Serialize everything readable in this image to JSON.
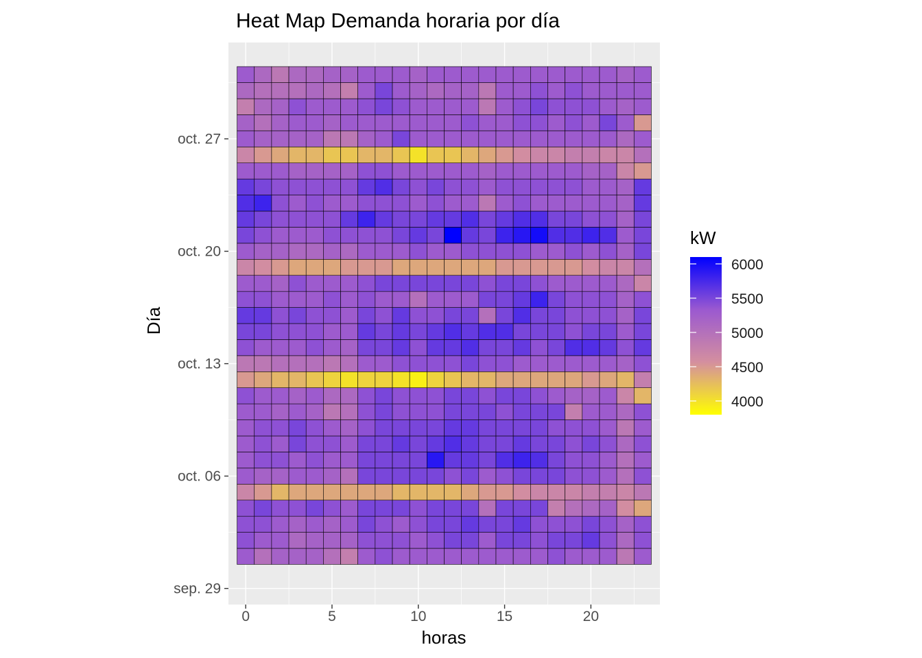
{
  "chart_data": {
    "type": "heatmap",
    "title": "Heat Map Demanda horaria por día",
    "xlabel": "horas",
    "ylabel": "Día",
    "xlim": [
      -1,
      24
    ],
    "x_ticks": [
      0,
      5,
      10,
      15,
      20
    ],
    "y_ticks": [
      {
        "label": "sep. 29",
        "date": "2019-09-29"
      },
      {
        "label": "oct. 06",
        "date": "2019-10-06"
      },
      {
        "label": "oct. 13",
        "date": "2019-10-13"
      },
      {
        "label": "oct. 20",
        "date": "2019-10-20"
      },
      {
        "label": "oct. 27",
        "date": "2019-10-27"
      }
    ],
    "ylim": [
      "2019-09-28",
      "2019-11-02"
    ],
    "hours": [
      0,
      1,
      2,
      3,
      4,
      5,
      6,
      7,
      8,
      9,
      10,
      11,
      12,
      13,
      14,
      15,
      16,
      17,
      18,
      19,
      20,
      21,
      22,
      23
    ],
    "legend": {
      "title": "kW",
      "position": "right",
      "breaks": [
        4000,
        4500,
        5000,
        5500,
        6000
      ],
      "range": [
        3800,
        6100
      ],
      "colors": [
        "#ffff00",
        "#d48f9f",
        "#9b59d0",
        "#0000ff"
      ]
    },
    "grid": true,
    "rows": [
      {
        "date": "2019-10-01",
        "values": [
          5300,
          5000,
          5200,
          5200,
          5200,
          5000,
          4800,
          5300,
          5400,
          5300,
          5300,
          5300,
          5300,
          5300,
          5300,
          5300,
          5300,
          5300,
          5400,
          5300,
          5300,
          5300,
          4900,
          5300
        ]
      },
      {
        "date": "2019-10-02",
        "values": [
          5400,
          5300,
          5300,
          5100,
          5200,
          5200,
          5200,
          5400,
          5400,
          5400,
          5300,
          5400,
          5500,
          5500,
          5300,
          5500,
          5500,
          5400,
          5500,
          5500,
          5600,
          5400,
          5100,
          5400
        ]
      },
      {
        "date": "2019-10-03",
        "values": [
          5400,
          5400,
          5300,
          5200,
          5300,
          5200,
          5300,
          5500,
          5400,
          5300,
          5400,
          5500,
          5500,
          5600,
          5500,
          5500,
          5600,
          5400,
          5400,
          5400,
          5500,
          5400,
          5200,
          5400
        ]
      },
      {
        "date": "2019-10-04",
        "values": [
          5400,
          5500,
          5400,
          5400,
          5500,
          5400,
          5300,
          5500,
          5500,
          5500,
          5400,
          5500,
          5500,
          5500,
          5000,
          5500,
          5500,
          5500,
          4800,
          5000,
          5100,
          5200,
          4600,
          4400
        ]
      },
      {
        "date": "2019-10-05",
        "values": [
          4700,
          4500,
          4300,
          4400,
          4400,
          4400,
          4400,
          4400,
          4400,
          4300,
          4300,
          4300,
          4300,
          4400,
          4500,
          4500,
          4600,
          4700,
          4700,
          4700,
          4800,
          4800,
          4700,
          4900
        ]
      },
      {
        "date": "2019-10-06",
        "values": [
          5300,
          5200,
          5200,
          5300,
          5300,
          5200,
          5000,
          5500,
          5500,
          5500,
          5500,
          5500,
          5400,
          5500,
          5300,
          5400,
          5500,
          5500,
          5500,
          5400,
          5400,
          5300,
          5000,
          5400
        ]
      },
      {
        "date": "2019-10-07",
        "values": [
          5300,
          5400,
          5400,
          5300,
          5400,
          5300,
          5300,
          5500,
          5500,
          5500,
          5500,
          5900,
          5600,
          5600,
          5500,
          5700,
          5800,
          5700,
          5500,
          5400,
          5400,
          5300,
          5000,
          5300
        ]
      },
      {
        "date": "2019-10-08",
        "values": [
          5300,
          5400,
          5300,
          5500,
          5400,
          5400,
          5300,
          5500,
          5500,
          5600,
          5500,
          5600,
          5700,
          5600,
          5500,
          5500,
          5600,
          5500,
          5500,
          5400,
          5500,
          5400,
          5100,
          5400
        ]
      },
      {
        "date": "2019-10-09",
        "values": [
          5300,
          5400,
          5400,
          5500,
          5400,
          5300,
          5200,
          5400,
          5500,
          5500,
          5500,
          5500,
          5600,
          5600,
          5500,
          5500,
          5500,
          5500,
          5400,
          5400,
          5400,
          5300,
          4900,
          5300
        ]
      },
      {
        "date": "2019-10-10",
        "values": [
          5300,
          5300,
          5200,
          5300,
          5200,
          4900,
          5000,
          5400,
          5500,
          5400,
          5400,
          5400,
          5500,
          5500,
          5500,
          5400,
          5500,
          5500,
          5500,
          4800,
          5300,
          5300,
          5100,
          5400
        ]
      },
      {
        "date": "2019-10-11",
        "values": [
          5400,
          5300,
          5300,
          5200,
          5300,
          5100,
          5100,
          5400,
          5500,
          5400,
          5400,
          5400,
          5500,
          5500,
          5400,
          5500,
          5500,
          5400,
          5300,
          5200,
          5200,
          5300,
          4700,
          4300
        ]
      },
      {
        "date": "2019-10-12",
        "values": [
          4500,
          4400,
          4300,
          4300,
          4200,
          4100,
          4000,
          4100,
          4100,
          4000,
          3900,
          4100,
          4200,
          4300,
          4300,
          4400,
          4400,
          4400,
          4400,
          4400,
          4500,
          4400,
          4300,
          4800
        ]
      },
      {
        "date": "2019-10-13",
        "values": [
          4900,
          4900,
          5000,
          5000,
          5000,
          4900,
          5000,
          5300,
          5300,
          5400,
          5400,
          5400,
          5400,
          5500,
          5400,
          5400,
          5300,
          5300,
          5300,
          5300,
          5300,
          5300,
          5200,
          5400
        ]
      },
      {
        "date": "2019-10-14",
        "values": [
          5400,
          5300,
          5300,
          5300,
          5400,
          5300,
          5200,
          5500,
          5500,
          5600,
          5400,
          5600,
          5600,
          5700,
          5500,
          5500,
          5600,
          5400,
          5500,
          5700,
          5700,
          5600,
          5400,
          5600
        ]
      },
      {
        "date": "2019-10-15",
        "values": [
          5500,
          5500,
          5400,
          5400,
          5400,
          5300,
          5300,
          5600,
          5500,
          5600,
          5500,
          5600,
          5700,
          5600,
          5700,
          5700,
          5500,
          5500,
          5500,
          5400,
          5500,
          5500,
          5300,
          5500
        ]
      },
      {
        "date": "2019-10-16",
        "values": [
          5600,
          5600,
          5400,
          5500,
          5400,
          5400,
          5300,
          5500,
          5400,
          5600,
          5400,
          5400,
          5500,
          5500,
          5000,
          5500,
          5700,
          5500,
          5500,
          5400,
          5400,
          5400,
          5200,
          5500
        ]
      },
      {
        "date": "2019-10-17",
        "values": [
          5400,
          5400,
          5300,
          5300,
          5300,
          5400,
          5300,
          5400,
          5300,
          5300,
          5000,
          5300,
          5300,
          5300,
          5500,
          5500,
          5600,
          5800,
          5500,
          5400,
          5400,
          5400,
          5200,
          5400
        ]
      },
      {
        "date": "2019-10-18",
        "values": [
          5300,
          5300,
          5200,
          5400,
          5300,
          5300,
          5300,
          5400,
          5500,
          5500,
          5500,
          5500,
          5500,
          5500,
          5400,
          5500,
          5500,
          5400,
          5300,
          5300,
          5300,
          5300,
          5100,
          4700
        ]
      },
      {
        "date": "2019-10-19",
        "values": [
          4700,
          4600,
          4500,
          4400,
          4400,
          4400,
          4500,
          4500,
          4500,
          4400,
          4400,
          4400,
          4400,
          4400,
          4400,
          4500,
          4500,
          4500,
          4500,
          4500,
          4600,
          4700,
          4700,
          5000
        ]
      },
      {
        "date": "2019-10-20",
        "values": [
          5300,
          5200,
          5200,
          5100,
          5100,
          5200,
          5100,
          5300,
          5300,
          5300,
          5400,
          5300,
          5300,
          5400,
          5400,
          5400,
          5400,
          5300,
          5300,
          5400,
          5300,
          5400,
          5200,
          5500
        ]
      },
      {
        "date": "2019-10-21",
        "values": [
          5500,
          5400,
          5300,
          5300,
          5300,
          5400,
          5400,
          5400,
          5400,
          5500,
          5600,
          5500,
          6100,
          5600,
          5500,
          5800,
          5900,
          6000,
          5700,
          5700,
          5800,
          5700,
          5300,
          5500
        ]
      },
      {
        "date": "2019-10-22",
        "values": [
          5600,
          5500,
          5400,
          5400,
          5400,
          5400,
          5600,
          5800,
          5600,
          5500,
          5500,
          5600,
          5600,
          5700,
          5500,
          5600,
          5700,
          5700,
          5500,
          5500,
          5400,
          5400,
          5200,
          5500
        ]
      },
      {
        "date": "2019-10-23",
        "values": [
          5700,
          5800,
          5400,
          5300,
          5400,
          5300,
          5300,
          5400,
          5400,
          5400,
          5300,
          5400,
          5300,
          5300,
          4900,
          5300,
          5400,
          5300,
          5300,
          5300,
          5300,
          5300,
          5200,
          5600
        ]
      },
      {
        "date": "2019-10-24",
        "values": [
          5600,
          5500,
          5400,
          5400,
          5400,
          5400,
          5400,
          5600,
          5700,
          5500,
          5400,
          5500,
          5400,
          5400,
          5300,
          5400,
          5400,
          5400,
          5400,
          5400,
          5300,
          5300,
          5200,
          5600
        ]
      },
      {
        "date": "2019-10-25",
        "values": [
          5300,
          5300,
          5300,
          5200,
          5200,
          5200,
          5200,
          5400,
          5400,
          5300,
          5300,
          5300,
          5300,
          5300,
          5200,
          5300,
          5300,
          5300,
          5300,
          5300,
          5200,
          5200,
          4700,
          4500
        ]
      },
      {
        "date": "2019-10-26",
        "values": [
          4700,
          4500,
          4400,
          4300,
          4300,
          4200,
          4200,
          4300,
          4300,
          4200,
          4000,
          4200,
          4200,
          4300,
          4400,
          4500,
          4600,
          4700,
          4700,
          4800,
          4800,
          4700,
          4700,
          5000
        ]
      },
      {
        "date": "2019-10-27",
        "values": [
          5300,
          5200,
          5200,
          5200,
          5200,
          4900,
          4900,
          5200,
          5300,
          5500,
          5300,
          5300,
          5300,
          5300,
          5300,
          5300,
          5300,
          5300,
          5300,
          5300,
          5300,
          5300,
          5100,
          5300
        ]
      },
      {
        "date": "2019-10-28",
        "values": [
          5200,
          5000,
          5200,
          5300,
          5300,
          5200,
          5300,
          5300,
          5300,
          5300,
          5300,
          5300,
          5300,
          5400,
          5300,
          5300,
          5400,
          5400,
          5300,
          5400,
          5300,
          5500,
          5300,
          4500
        ]
      },
      {
        "date": "2019-10-29",
        "values": [
          4800,
          5100,
          5200,
          5400,
          5300,
          5300,
          5300,
          5400,
          5500,
          5400,
          5300,
          5300,
          5300,
          5300,
          4900,
          5300,
          5400,
          5500,
          5400,
          5400,
          5400,
          5300,
          5200,
          5300
        ]
      },
      {
        "date": "2019-10-30",
        "values": [
          5100,
          5000,
          5000,
          5000,
          5100,
          5000,
          4800,
          5300,
          5500,
          5300,
          5200,
          5100,
          5200,
          5200,
          4900,
          5300,
          5300,
          5400,
          5300,
          5400,
          5300,
          5300,
          5300,
          5300
        ]
      },
      {
        "date": "2019-10-31",
        "values": [
          5300,
          5100,
          4900,
          5100,
          5100,
          5200,
          5200,
          5300,
          5300,
          5300,
          5200,
          5300,
          5300,
          5300,
          5300,
          5300,
          5300,
          5300,
          5300,
          5300,
          5300,
          5300,
          5200,
          5300
        ]
      }
    ]
  }
}
